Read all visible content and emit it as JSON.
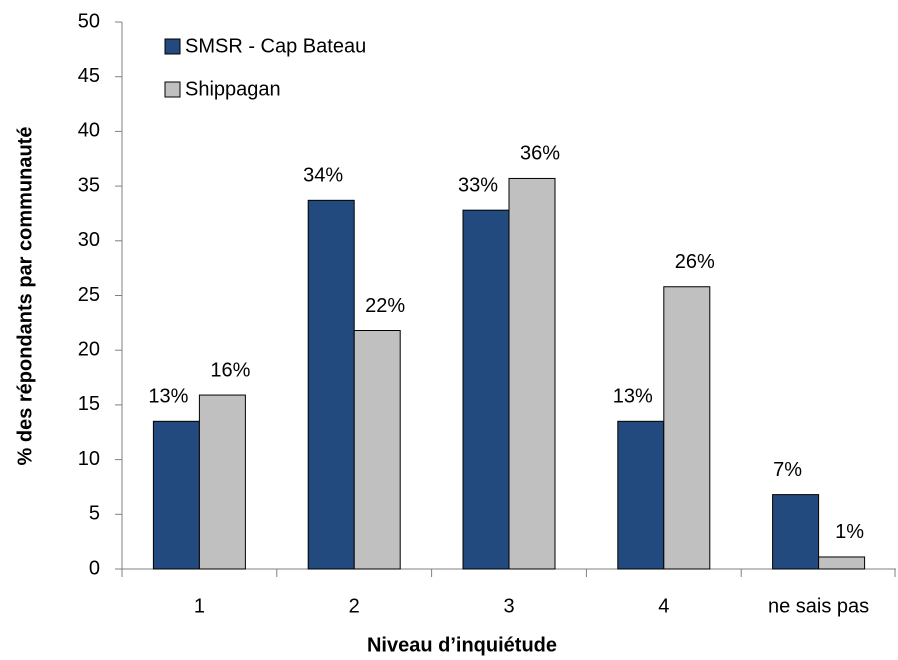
{
  "chart_data": {
    "type": "bar",
    "xlabel": "Niveau d’inquiétude",
    "ylabel": "% des répondants par communauté",
    "categories": [
      "1",
      "2",
      "3",
      "4",
      "ne sais pas"
    ],
    "series": [
      {
        "name": "SMSR - Cap Bateau",
        "color": "#234a7e",
        "values": [
          13.5,
          33.7,
          32.8,
          13.5,
          6.8
        ],
        "value_labels": [
          "13%",
          "34%",
          "33%",
          "13%",
          "7%"
        ]
      },
      {
        "name": "Shippagan",
        "color": "#c0c0c0",
        "values": [
          15.9,
          21.8,
          35.7,
          25.8,
          1.1
        ],
        "value_labels": [
          "16%",
          "22%",
          "36%",
          "26%",
          "1%"
        ]
      }
    ],
    "ylim": [
      0,
      50
    ],
    "yticks": [
      0,
      5,
      10,
      15,
      20,
      25,
      30,
      35,
      40,
      45,
      50
    ],
    "grid": false,
    "legend": "upper left"
  }
}
